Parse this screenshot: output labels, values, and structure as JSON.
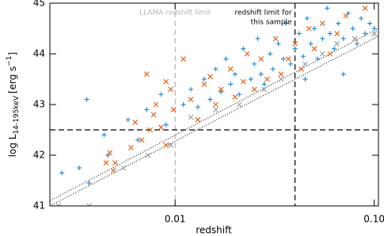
{
  "chart_data": {
    "type": "scatter",
    "xlabel": "redshift",
    "ylabel": {
      "main": "log L",
      "sub": "14-195keV",
      "unit": "[erg s",
      "sup": "−1",
      "end": "]"
    },
    "xlog": true,
    "xlim": [
      0.00235,
      0.105
    ],
    "ylim": [
      41,
      45
    ],
    "xticks": [
      {
        "value": 0.01,
        "label": "0.01"
      },
      {
        "value": 0.1,
        "label": "0.10"
      }
    ],
    "yticks": [
      41,
      42,
      43,
      44,
      45
    ],
    "vlines": [
      {
        "x": 0.01,
        "color": "#b4b4b4",
        "label": [
          "LLAMA redshift limit"
        ]
      },
      {
        "x": 0.04,
        "color": "#000000",
        "label": [
          "redshift limit for",
          "this sample"
        ]
      }
    ],
    "hlines": [
      {
        "y": 42.5,
        "color": "#000000"
      }
    ],
    "dotted_lines": [
      {
        "x": [
          0.00235,
          0.105
        ],
        "y": [
          41.1,
          44.5
        ]
      },
      {
        "x": [
          0.00235,
          0.105
        ],
        "y": [
          41.0,
          44.35
        ]
      }
    ],
    "series": [
      {
        "color": "#2a8bd0",
        "marker": "plus",
        "x": [
          0.0027,
          0.0033,
          0.0037,
          0.0036,
          0.0044,
          0.0046,
          0.0058,
          0.0065,
          0.0072,
          0.0085,
          0.009,
          0.011,
          0.012,
          0.013,
          0.014,
          0.015,
          0.016,
          0.017,
          0.018,
          0.019,
          0.02,
          0.021,
          0.022,
          0.024,
          0.025,
          0.026,
          0.027,
          0.028,
          0.03,
          0.031,
          0.033,
          0.035,
          0.036,
          0.038,
          0.04,
          0.042,
          0.044,
          0.046,
          0.048,
          0.05,
          0.052,
          0.055,
          0.058,
          0.06,
          0.063,
          0.066,
          0.07,
          0.074,
          0.078,
          0.082,
          0.086,
          0.09,
          0.095,
          0.1,
          0.07,
          0.045
        ],
        "values": [
          41.65,
          41.75,
          41.45,
          43.1,
          42.4,
          42.0,
          42.7,
          42.3,
          42.9,
          43.2,
          42.6,
          43.0,
          43.3,
          42.95,
          43.5,
          43.1,
          43.7,
          43.25,
          43.9,
          43.4,
          43.6,
          43.2,
          44.1,
          43.5,
          43.8,
          44.3,
          43.6,
          43.4,
          44.0,
          43.7,
          44.2,
          43.9,
          44.6,
          43.8,
          44.1,
          44.4,
          43.95,
          44.7,
          44.2,
          44.5,
          43.9,
          44.3,
          44.9,
          44.4,
          44.1,
          44.6,
          44.3,
          44.8,
          44.5,
          44.2,
          44.7,
          44.4,
          44.6,
          44.5,
          43.6,
          43.5
        ]
      },
      {
        "color": "#e3651d",
        "marker": "cross",
        "x": [
          0.0045,
          0.0047,
          0.0049,
          0.005,
          0.006,
          0.0063,
          0.0068,
          0.0075,
          0.0078,
          0.008,
          0.0085,
          0.009,
          0.0095,
          0.0098,
          0.011,
          0.012,
          0.013,
          0.014,
          0.015,
          0.016,
          0.017,
          0.019,
          0.02,
          0.022,
          0.023,
          0.025,
          0.027,
          0.029,
          0.032,
          0.034,
          0.037,
          0.04,
          0.043,
          0.047,
          0.05,
          0.055,
          0.06,
          0.065,
          0.072,
          0.08,
          0.09,
          0.1,
          0.009,
          0.0072
        ],
        "values": [
          41.85,
          42.05,
          41.7,
          41.85,
          42.15,
          42.65,
          42.3,
          42.5,
          42.8,
          43.0,
          42.55,
          42.2,
          43.3,
          42.9,
          43.9,
          43.1,
          42.7,
          43.4,
          43.55,
          43.0,
          43.3,
          43.7,
          43.15,
          43.45,
          44.0,
          43.3,
          43.9,
          43.5,
          44.3,
          43.6,
          43.9,
          44.2,
          43.7,
          44.5,
          44.1,
          44.6,
          44.0,
          44.4,
          44.75,
          44.3,
          44.9,
          44.4,
          43.45,
          43.6
        ]
      },
      {
        "color": "#a0a0a0",
        "marker": "cross",
        "x": [
          0.0026,
          0.0037,
          0.0055,
          0.0073,
          0.0095,
          0.012,
          0.016,
          0.021,
          0.028,
          0.034,
          0.045,
          0.055,
          0.065,
          0.08,
          0.1
        ],
        "values": [
          41.0,
          41.0,
          41.75,
          42.0,
          42.2,
          42.75,
          42.9,
          43.0,
          43.3,
          43.5,
          43.8,
          44.0,
          44.2,
          44.3,
          44.4
        ]
      }
    ]
  }
}
